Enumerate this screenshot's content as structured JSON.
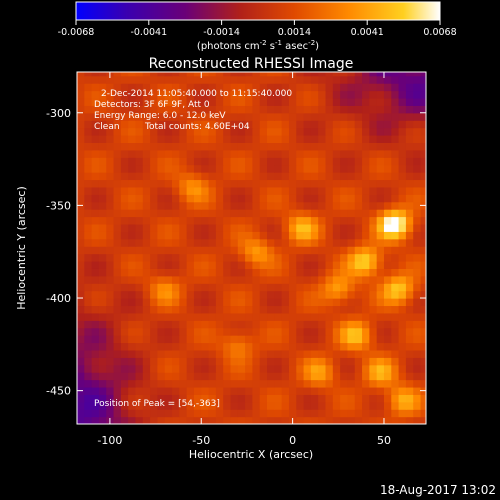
{
  "colorbar": {
    "ticks": [
      "-0.0068",
      "-0.0041",
      "-0.0014",
      "0.0014",
      "0.0041",
      "0.0068"
    ],
    "unit_label_main": "(photons cm",
    "unit_label_exp1": "-2",
    "unit_label_mid": " s",
    "unit_label_exp2": "-1",
    "unit_label_asec": " asec",
    "unit_label_exp3": "-2",
    "unit_label_close": ")",
    "colors": [
      "#0000ff",
      "#3a00b0",
      "#6a0078",
      "#b0201a",
      "#e04a00",
      "#ff8a00",
      "#ffd020",
      "#ffffff"
    ]
  },
  "chart_data": {
    "type": "heatmap",
    "title": "Reconstructed RHESSI Image",
    "xlabel": "Heliocentric X (arcsec)",
    "ylabel": "Heliocentric Y (arcsec)",
    "xlim": [
      -118,
      73
    ],
    "ylim": [
      -468,
      -278
    ],
    "x_ticks": [
      "-100",
      "-50",
      "0",
      "50"
    ],
    "x_tick_values": [
      -100,
      -50,
      0,
      50
    ],
    "y_ticks": [
      "-300",
      "-350",
      "-400",
      "-450"
    ],
    "y_tick_values": [
      -300,
      -350,
      -400,
      -450
    ],
    "color_range": [
      -0.0068,
      0.0068
    ],
    "peak": [
      54,
      -363
    ],
    "blobs": [
      {
        "x": 56,
        "y": -360,
        "w": 0.0068
      },
      {
        "x": 40,
        "y": -380,
        "w": 0.0048
      },
      {
        "x": 58,
        "y": -395,
        "w": 0.0044
      },
      {
        "x": 35,
        "y": -420,
        "w": 0.0038
      },
      {
        "x": 5,
        "y": -362,
        "w": 0.0036
      },
      {
        "x": 25,
        "y": -395,
        "w": 0.0034
      },
      {
        "x": -20,
        "y": -375,
        "w": 0.003
      },
      {
        "x": 48,
        "y": -440,
        "w": 0.0032
      },
      {
        "x": 60,
        "y": -455,
        "w": 0.0034
      },
      {
        "x": -55,
        "y": -340,
        "w": 0.0026
      },
      {
        "x": -70,
        "y": -395,
        "w": 0.0024
      },
      {
        "x": 15,
        "y": -440,
        "w": 0.0028
      },
      {
        "x": -30,
        "y": -425,
        "w": 0.0024
      }
    ],
    "annotations": {
      "time_range": "2-Dec-2014 11:05:40.000 to 11:15:40.000",
      "detectors": "Detectors: 3F 6F 9F, Att 0",
      "energy": "Energy Range: 6.0 - 12.0 keV",
      "method": "Clean",
      "total_counts": "Total counts: 4.60E+04",
      "peak_text": "Position of Peak = [54,-363]"
    }
  },
  "footer": {
    "timestamp": "18-Aug-2017 13:02"
  }
}
